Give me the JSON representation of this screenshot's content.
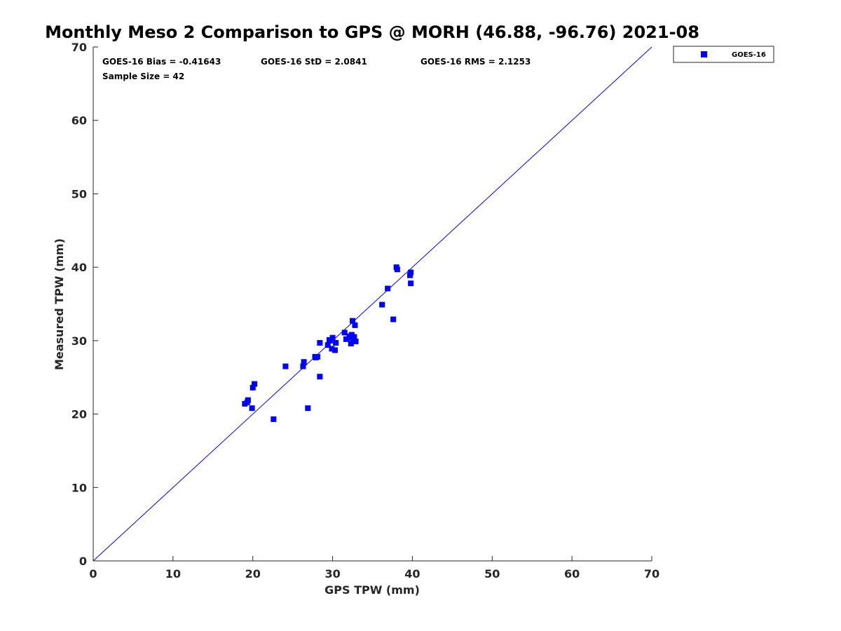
{
  "chart_data": {
    "type": "scatter",
    "title": "Monthly Meso 2 Comparison to GPS @ MORH (46.88, -96.76) 2021-08",
    "xlabel": "GPS TPW (mm)",
    "ylabel": "Measured TPW (mm)",
    "xlim": [
      0,
      70
    ],
    "ylim": [
      0,
      70
    ],
    "xticks": [
      0,
      10,
      20,
      30,
      40,
      50,
      60,
      70
    ],
    "yticks": [
      0,
      10,
      20,
      30,
      40,
      50,
      60,
      70
    ],
    "grid": false,
    "legend_position": "top-right-outside",
    "reference_line": "y = x",
    "colors": {
      "series": "#0000ff",
      "reference_line": "#0000ff",
      "axis": "#262626"
    },
    "annotations": {
      "bias": "GOES-16 Bias = -0.41643",
      "std": "GOES-16 StD = 2.0841",
      "rms": "GOES-16 RMS = 2.1253",
      "sample_size": "Sample Size = 42"
    },
    "series": [
      {
        "name": "GOES-16",
        "marker": "square",
        "points": [
          [
            19.0,
            21.4
          ],
          [
            19.3,
            21.6
          ],
          [
            19.4,
            21.9
          ],
          [
            19.9,
            20.8
          ],
          [
            20.0,
            23.6
          ],
          [
            20.2,
            24.1
          ],
          [
            22.6,
            19.3
          ],
          [
            24.1,
            26.5
          ],
          [
            26.3,
            26.5
          ],
          [
            26.4,
            27.1
          ],
          [
            26.9,
            20.8
          ],
          [
            27.8,
            27.8
          ],
          [
            28.1,
            27.8
          ],
          [
            28.4,
            29.7
          ],
          [
            28.4,
            25.1
          ],
          [
            29.4,
            29.4
          ],
          [
            29.6,
            30.1
          ],
          [
            29.9,
            28.9
          ],
          [
            30.0,
            30.4
          ],
          [
            30.3,
            28.7
          ],
          [
            30.4,
            29.7
          ],
          [
            31.5,
            31.1
          ],
          [
            31.7,
            30.2
          ],
          [
            32.1,
            30.6
          ],
          [
            32.3,
            29.6
          ],
          [
            32.4,
            30.8
          ],
          [
            32.5,
            32.7
          ],
          [
            32.6,
            30.1
          ],
          [
            32.7,
            30.5
          ],
          [
            32.8,
            32.1
          ],
          [
            32.9,
            29.9
          ],
          [
            36.2,
            34.9
          ],
          [
            36.9,
            37.1
          ],
          [
            37.6,
            32.9
          ],
          [
            38.0,
            40.0
          ],
          [
            38.1,
            39.7
          ],
          [
            39.7,
            38.9
          ],
          [
            39.8,
            39.3
          ],
          [
            39.8,
            37.8
          ],
          [
            29.7,
            30.0
          ],
          [
            32.2,
            30.4
          ],
          [
            27.9,
            27.7
          ]
        ]
      }
    ]
  }
}
